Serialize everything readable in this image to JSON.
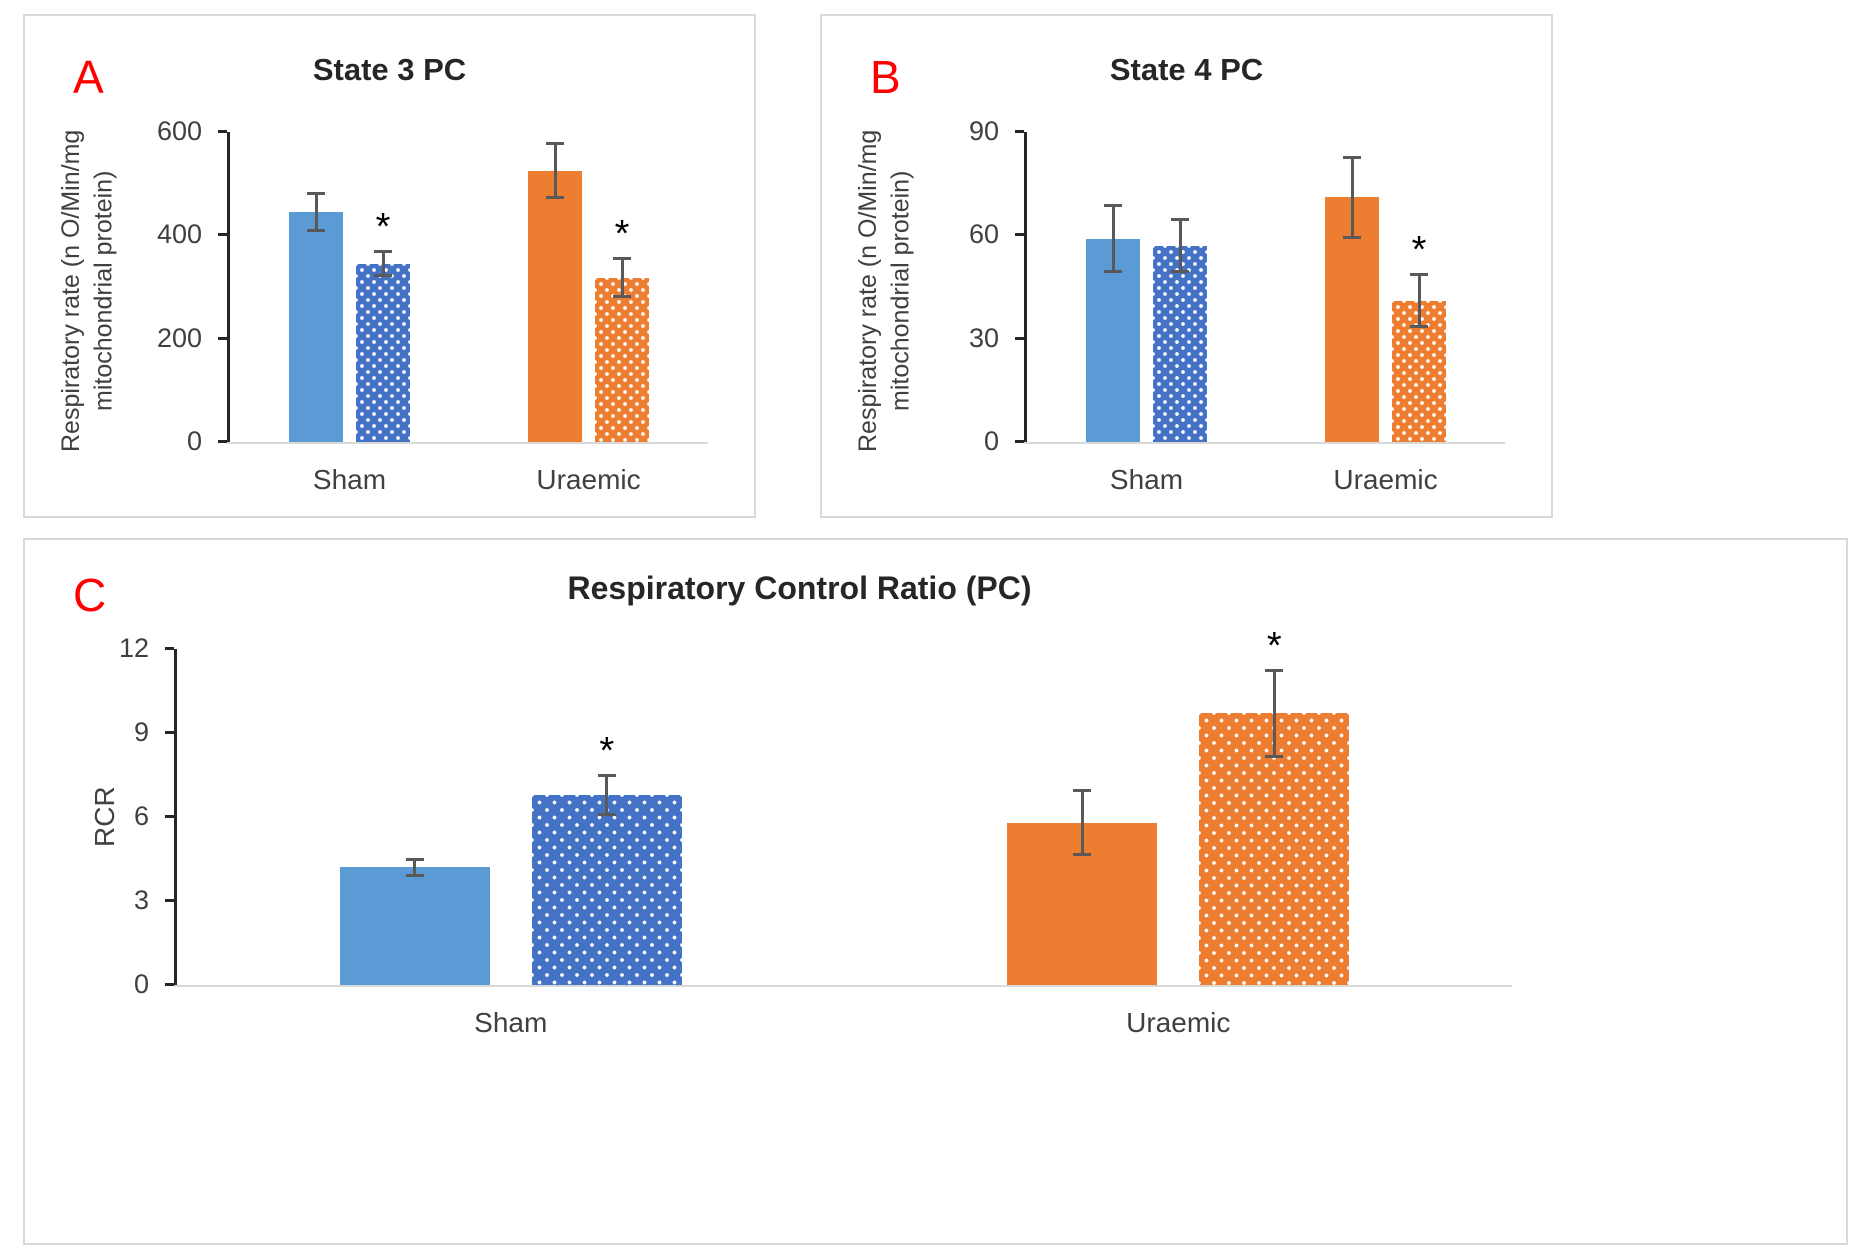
{
  "sig_symbol": "*",
  "colors": {
    "solid_blue": "#5B9BD5",
    "dotted_blue": "#4472C4",
    "orange": "#ED7D31",
    "axis": "#262626",
    "error_bar": "#595959",
    "panel_border": "#d9d9d9",
    "panel_label": "#ff0000"
  },
  "chart_data": [
    {
      "type": "bar",
      "panel_label": "A",
      "title": "State 3 PC",
      "ylabel": "Respiratory rate (n O/Min/mg mitochondrial protein)",
      "xlabel": "",
      "ylim": [
        0,
        600
      ],
      "yticks": [
        0,
        200,
        400,
        600
      ],
      "grid": false,
      "legend": "none",
      "categories": [
        "Sham",
        "Uraemic"
      ],
      "groups": [
        {
          "category": "Sham",
          "bars": [
            {
              "value": 445,
              "error": 38,
              "color": "#5B9BD5",
              "pattern": "solid",
              "sig": false
            },
            {
              "value": 345,
              "error": 26,
              "color": "#4472C4",
              "pattern": "dotted",
              "sig": true
            }
          ]
        },
        {
          "category": "Uraemic",
          "bars": [
            {
              "value": 525,
              "error": 55,
              "color": "#ED7D31",
              "pattern": "solid",
              "sig": false
            },
            {
              "value": 318,
              "error": 40,
              "color": "#ED7D31",
              "pattern": "dotted",
              "sig": true
            }
          ]
        }
      ]
    },
    {
      "type": "bar",
      "panel_label": "B",
      "title": "State 4 PC",
      "ylabel": "Respiratory rate (n O/Min/mg mitochondrial protein)",
      "xlabel": "",
      "ylim": [
        0,
        90
      ],
      "yticks": [
        0,
        30,
        60,
        90
      ],
      "grid": false,
      "legend": "none",
      "categories": [
        "Sham",
        "Uraemic"
      ],
      "groups": [
        {
          "category": "Sham",
          "bars": [
            {
              "value": 59,
              "error": 10,
              "color": "#5B9BD5",
              "pattern": "solid",
              "sig": false
            },
            {
              "value": 57,
              "error": 8,
              "color": "#4472C4",
              "pattern": "dotted",
              "sig": false
            }
          ]
        },
        {
          "category": "Uraemic",
          "bars": [
            {
              "value": 71,
              "error": 12,
              "color": "#ED7D31",
              "pattern": "solid",
              "sig": false
            },
            {
              "value": 41,
              "error": 8,
              "color": "#ED7D31",
              "pattern": "dotted",
              "sig": true
            }
          ]
        }
      ]
    },
    {
      "type": "bar",
      "panel_label": "C",
      "title": "Respiratory Control Ratio (PC)",
      "ylabel": "RCR",
      "xlabel": "",
      "ylim": [
        0,
        12
      ],
      "yticks": [
        0,
        3,
        6,
        9,
        12
      ],
      "grid": false,
      "legend": "none",
      "categories": [
        "Sham",
        "Uraemic"
      ],
      "groups": [
        {
          "category": "Sham",
          "bars": [
            {
              "value": 4.2,
              "error": 0.35,
              "color": "#5B9BD5",
              "pattern": "solid",
              "sig": false
            },
            {
              "value": 6.8,
              "error": 0.75,
              "color": "#4472C4",
              "pattern": "dotted",
              "sig": true
            }
          ]
        },
        {
          "category": "Uraemic",
          "bars": [
            {
              "value": 5.8,
              "error": 1.2,
              "color": "#ED7D31",
              "pattern": "solid",
              "sig": false
            },
            {
              "value": 9.7,
              "error": 1.6,
              "color": "#ED7D31",
              "pattern": "dotted",
              "sig": true
            }
          ]
        }
      ]
    }
  ]
}
